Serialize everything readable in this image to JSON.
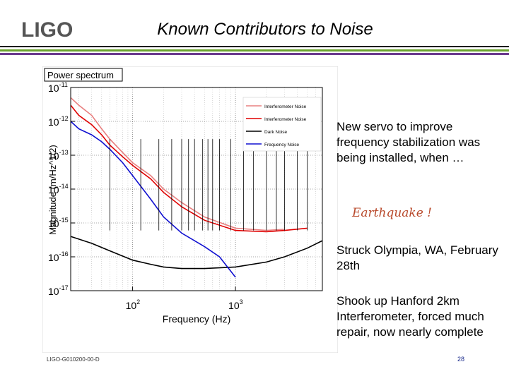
{
  "header": {
    "logo_text": "LIGO",
    "title": "Known Contributors to Noise"
  },
  "colors": {
    "rule_top": "#000000",
    "rule_green": "#6aa32d",
    "rule_purple": "#6b3a8e",
    "interferometer_noise_1": "#e88080",
    "interferometer_noise_2": "#e00000",
    "dark_noise": "#000000",
    "frequency_noise": "#1010d0",
    "quake_text": "#b8482a"
  },
  "chart_data": {
    "type": "line",
    "title": "Power spectrum",
    "xlabel": "Frequency (Hz)",
    "ylabel": "Magnitude (m/Hz^1/2)",
    "xscale": "log",
    "yscale": "log",
    "xlim": [
      25,
      7000
    ],
    "ylim": [
      1e-17,
      1e-11
    ],
    "grid": true,
    "legend_position": "top-right",
    "x_ticks": [
      {
        "base": "10",
        "exp": "2",
        "value": 100
      },
      {
        "base": "10",
        "exp": "3",
        "value": 1000
      }
    ],
    "y_ticks": [
      {
        "base": "10",
        "exp": "-11",
        "value": 1e-11
      },
      {
        "base": "10",
        "exp": "-12",
        "value": 1e-12
      },
      {
        "base": "10",
        "exp": "-13",
        "value": 1e-13
      },
      {
        "base": "10",
        "exp": "-14",
        "value": 1e-14
      },
      {
        "base": "10",
        "exp": "-15",
        "value": 1e-15
      },
      {
        "base": "10",
        "exp": "-16",
        "value": 1e-16
      },
      {
        "base": "10",
        "exp": "-17",
        "value": 1e-17
      }
    ],
    "series": [
      {
        "name": "Interferometer Noise",
        "color": "#e88080",
        "x": [
          25,
          30,
          40,
          50,
          60,
          80,
          100,
          150,
          200,
          300,
          500,
          1000,
          2000,
          3000
        ],
        "y": [
          5e-12,
          3e-12,
          1.5e-12,
          6e-13,
          3e-13,
          1.2e-13,
          6e-14,
          2.5e-14,
          1e-14,
          4e-15,
          1.5e-15,
          7e-16,
          6e-16,
          6.5e-16
        ]
      },
      {
        "name": "Interferometer Noise",
        "color": "#e00000",
        "x": [
          25,
          30,
          40,
          50,
          60,
          80,
          100,
          150,
          200,
          300,
          500,
          1000,
          2000,
          3000,
          5000
        ],
        "y": [
          3e-12,
          1.5e-12,
          8e-13,
          4e-13,
          2e-13,
          9e-14,
          5e-14,
          2e-14,
          8e-15,
          3e-15,
          1.2e-15,
          6e-16,
          5.5e-16,
          6e-16,
          7e-16
        ]
      },
      {
        "name": "Dark Noise",
        "color": "#000000",
        "x": [
          25,
          40,
          60,
          100,
          150,
          200,
          300,
          500,
          1000,
          2000,
          3000,
          5000,
          7000
        ],
        "y": [
          4e-16,
          2.5e-16,
          1.5e-16,
          8e-17,
          6e-17,
          5e-17,
          4.5e-17,
          4.5e-17,
          5e-17,
          7e-17,
          1e-16,
          1.8e-16,
          3e-16
        ]
      },
      {
        "name": "Frequency Noise",
        "color": "#1010d0",
        "x": [
          25,
          30,
          40,
          50,
          60,
          80,
          100,
          150,
          200,
          300,
          500,
          700,
          1000
        ],
        "y": [
          1e-12,
          6e-13,
          4e-13,
          2.5e-13,
          1.5e-13,
          6e-14,
          2.5e-14,
          5e-15,
          1.5e-15,
          5e-16,
          2e-16,
          1e-16,
          2.5e-17
        ]
      }
    ],
    "spikes_hz": [
      60,
      120,
      180,
      240,
      300,
      350,
      400,
      480,
      540,
      600,
      700,
      900,
      1200,
      1500,
      2000,
      2500,
      3000,
      4000,
      5000
    ]
  },
  "body": {
    "servo_text": "New servo to improve frequency stabilization was being installed, when …",
    "quake_text": "Earthquake !",
    "struck_text": "Struck Olympia, WA, February 28th",
    "shook_text": "Shook up Hanford 2km Interferometer, forced much repair, now nearly complete"
  },
  "footer": {
    "doc_id": "LIGO-G010200-00-D",
    "page_number": "28"
  }
}
